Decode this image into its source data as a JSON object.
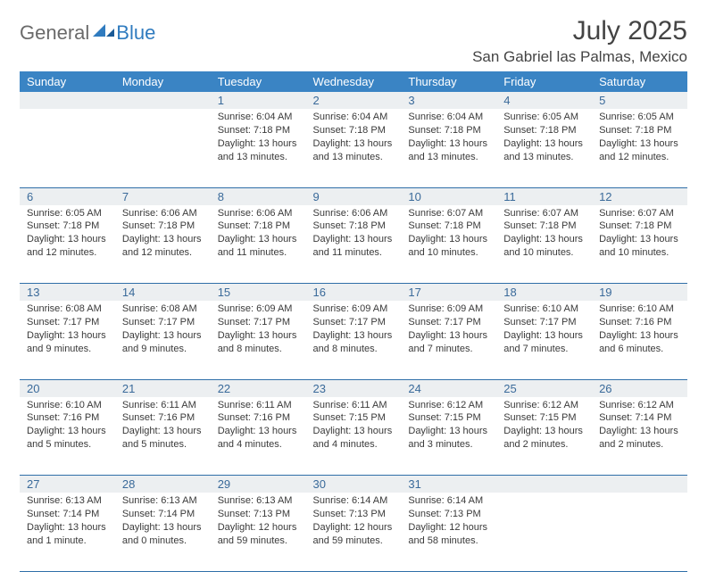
{
  "logo": {
    "general": "General",
    "blue": "Blue"
  },
  "title": "July 2025",
  "location": "San Gabriel las Palmas, Mexico",
  "colors": {
    "header_bg": "#3a84c4",
    "header_text": "#ffffff",
    "daynum_bg": "#eceff1",
    "daynum_text": "#3a6a9a",
    "rule": "#2f6fa8",
    "logo_gray": "#6a6a6a",
    "logo_blue": "#2f7bbf"
  },
  "dow": [
    "Sunday",
    "Monday",
    "Tuesday",
    "Wednesday",
    "Thursday",
    "Friday",
    "Saturday"
  ],
  "weeks": [
    [
      null,
      null,
      {
        "n": "1",
        "sr": "6:04 AM",
        "ss": "7:18 PM",
        "dl": "13 hours and 13 minutes."
      },
      {
        "n": "2",
        "sr": "6:04 AM",
        "ss": "7:18 PM",
        "dl": "13 hours and 13 minutes."
      },
      {
        "n": "3",
        "sr": "6:04 AM",
        "ss": "7:18 PM",
        "dl": "13 hours and 13 minutes."
      },
      {
        "n": "4",
        "sr": "6:05 AM",
        "ss": "7:18 PM",
        "dl": "13 hours and 13 minutes."
      },
      {
        "n": "5",
        "sr": "6:05 AM",
        "ss": "7:18 PM",
        "dl": "13 hours and 12 minutes."
      }
    ],
    [
      {
        "n": "6",
        "sr": "6:05 AM",
        "ss": "7:18 PM",
        "dl": "13 hours and 12 minutes."
      },
      {
        "n": "7",
        "sr": "6:06 AM",
        "ss": "7:18 PM",
        "dl": "13 hours and 12 minutes."
      },
      {
        "n": "8",
        "sr": "6:06 AM",
        "ss": "7:18 PM",
        "dl": "13 hours and 11 minutes."
      },
      {
        "n": "9",
        "sr": "6:06 AM",
        "ss": "7:18 PM",
        "dl": "13 hours and 11 minutes."
      },
      {
        "n": "10",
        "sr": "6:07 AM",
        "ss": "7:18 PM",
        "dl": "13 hours and 10 minutes."
      },
      {
        "n": "11",
        "sr": "6:07 AM",
        "ss": "7:18 PM",
        "dl": "13 hours and 10 minutes."
      },
      {
        "n": "12",
        "sr": "6:07 AM",
        "ss": "7:18 PM",
        "dl": "13 hours and 10 minutes."
      }
    ],
    [
      {
        "n": "13",
        "sr": "6:08 AM",
        "ss": "7:17 PM",
        "dl": "13 hours and 9 minutes."
      },
      {
        "n": "14",
        "sr": "6:08 AM",
        "ss": "7:17 PM",
        "dl": "13 hours and 9 minutes."
      },
      {
        "n": "15",
        "sr": "6:09 AM",
        "ss": "7:17 PM",
        "dl": "13 hours and 8 minutes."
      },
      {
        "n": "16",
        "sr": "6:09 AM",
        "ss": "7:17 PM",
        "dl": "13 hours and 8 minutes."
      },
      {
        "n": "17",
        "sr": "6:09 AM",
        "ss": "7:17 PM",
        "dl": "13 hours and 7 minutes."
      },
      {
        "n": "18",
        "sr": "6:10 AM",
        "ss": "7:17 PM",
        "dl": "13 hours and 7 minutes."
      },
      {
        "n": "19",
        "sr": "6:10 AM",
        "ss": "7:16 PM",
        "dl": "13 hours and 6 minutes."
      }
    ],
    [
      {
        "n": "20",
        "sr": "6:10 AM",
        "ss": "7:16 PM",
        "dl": "13 hours and 5 minutes."
      },
      {
        "n": "21",
        "sr": "6:11 AM",
        "ss": "7:16 PM",
        "dl": "13 hours and 5 minutes."
      },
      {
        "n": "22",
        "sr": "6:11 AM",
        "ss": "7:16 PM",
        "dl": "13 hours and 4 minutes."
      },
      {
        "n": "23",
        "sr": "6:11 AM",
        "ss": "7:15 PM",
        "dl": "13 hours and 4 minutes."
      },
      {
        "n": "24",
        "sr": "6:12 AM",
        "ss": "7:15 PM",
        "dl": "13 hours and 3 minutes."
      },
      {
        "n": "25",
        "sr": "6:12 AM",
        "ss": "7:15 PM",
        "dl": "13 hours and 2 minutes."
      },
      {
        "n": "26",
        "sr": "6:12 AM",
        "ss": "7:14 PM",
        "dl": "13 hours and 2 minutes."
      }
    ],
    [
      {
        "n": "27",
        "sr": "6:13 AM",
        "ss": "7:14 PM",
        "dl": "13 hours and 1 minute."
      },
      {
        "n": "28",
        "sr": "6:13 AM",
        "ss": "7:14 PM",
        "dl": "13 hours and 0 minutes."
      },
      {
        "n": "29",
        "sr": "6:13 AM",
        "ss": "7:13 PM",
        "dl": "12 hours and 59 minutes."
      },
      {
        "n": "30",
        "sr": "6:14 AM",
        "ss": "7:13 PM",
        "dl": "12 hours and 59 minutes."
      },
      {
        "n": "31",
        "sr": "6:14 AM",
        "ss": "7:13 PM",
        "dl": "12 hours and 58 minutes."
      },
      null,
      null
    ]
  ],
  "labels": {
    "sunrise": "Sunrise:",
    "sunset": "Sunset:",
    "daylight": "Daylight:"
  }
}
